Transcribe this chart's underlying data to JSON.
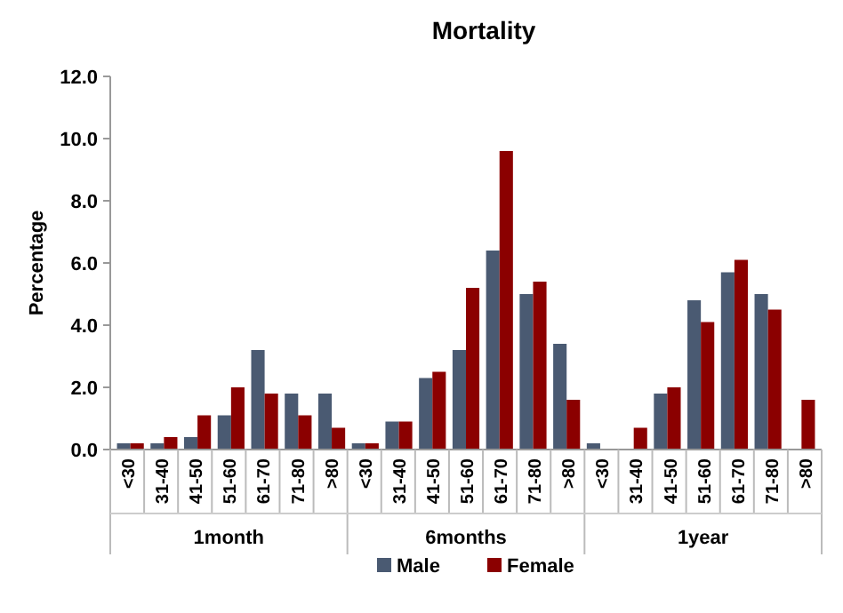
{
  "chart_data": {
    "type": "bar",
    "title": "Mortality",
    "ylabel": "Percentage",
    "categories": [
      "<30",
      "31-40",
      "41-50",
      "51-60",
      "61-70",
      "71-80",
      ">80",
      "<30",
      "31-40",
      "41-50",
      "51-60",
      "61-70",
      "71-80",
      ">80",
      "<30",
      "31-40",
      "41-50",
      "51-60",
      "61-70",
      "71-80",
      ">80"
    ],
    "annotations": [
      "1month",
      "6months",
      "1year"
    ],
    "series": [
      {
        "name": "Male",
        "color": "#4a5a72",
        "values": [
          0.2,
          0.2,
          0.4,
          1.1,
          3.2,
          1.8,
          1.8,
          0.2,
          0.9,
          2.3,
          3.2,
          6.4,
          5.0,
          3.4,
          0.2,
          0,
          1.8,
          4.8,
          5.7,
          5.0,
          0
        ]
      },
      {
        "name": "Female",
        "color": "#8b0000",
        "values": [
          0.2,
          0.4,
          1.1,
          2.0,
          1.8,
          1.1,
          0.7,
          0.2,
          0.9,
          2.5,
          5.2,
          9.6,
          5.4,
          1.6,
          0,
          0.7,
          2.0,
          4.1,
          6.1,
          4.5,
          1.6
        ]
      }
    ],
    "ylim": [
      0,
      12
    ],
    "yticks": [
      {
        "value": 0,
        "label": "0.0"
      },
      {
        "value": 2,
        "label": "2.0"
      },
      {
        "value": 4,
        "label": "4.0"
      },
      {
        "value": 6,
        "label": "6.0"
      },
      {
        "value": 8,
        "label": "8.0"
      },
      {
        "value": 10,
        "label": "10.0"
      },
      {
        "value": 12,
        "label": "12.0"
      }
    ],
    "legend": "bottom"
  }
}
